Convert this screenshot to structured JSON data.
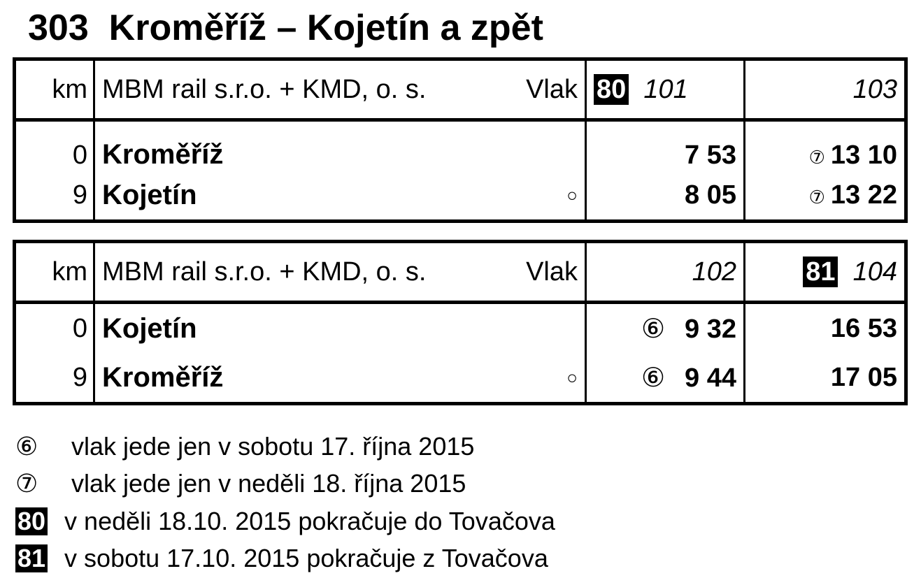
{
  "title": "303  Kroměříž – Kojetín a zpět",
  "tables": [
    {
      "header": {
        "km": "km",
        "operator": "MBM rail s.r.o. + KMD, o. s.",
        "train_label": "Vlak",
        "trains": [
          {
            "badge": "80",
            "number": "101"
          },
          {
            "badge": "",
            "number": "103"
          }
        ]
      },
      "rows": [
        {
          "km": "0",
          "station": "Kroměříž",
          "mark": "",
          "times": [
            {
              "note": "",
              "time": "7 53"
            },
            {
              "note": "⑦",
              "time": "13 10"
            }
          ]
        },
        {
          "km": "9",
          "station": "Kojetín",
          "mark": "○",
          "times": [
            {
              "note": "",
              "time": "8 05"
            },
            {
              "note": "⑦",
              "time": "13 22"
            }
          ]
        }
      ]
    },
    {
      "header": {
        "km": "km",
        "operator": "MBM rail s.r.o. + KMD, o. s.",
        "train_label": "Vlak",
        "trains": [
          {
            "badge": "",
            "number": "102"
          },
          {
            "badge": "81",
            "number": "104"
          }
        ]
      },
      "rows": [
        {
          "km": "0",
          "station": "Kojetín",
          "mark": "",
          "times": [
            {
              "note": "⑥",
              "time": "9 32"
            },
            {
              "note": "",
              "time": "16 53"
            }
          ]
        },
        {
          "km": "9",
          "station": "Kroměříž",
          "mark": "○",
          "times": [
            {
              "note": "⑥",
              "time": "9 44"
            },
            {
              "note": "",
              "time": "17 05"
            }
          ]
        }
      ]
    }
  ],
  "legend": [
    {
      "symbol": "⑥",
      "text": "vlak jede jen v sobotu 17. října 2015"
    },
    {
      "symbol": "⑦",
      "text": "vlak jede jen v neděli 18. října 2015"
    },
    {
      "symbol": "80",
      "text": "v neděli 18.10. 2015 pokračuje do Tovačova"
    },
    {
      "symbol": "81",
      "text": "v sobotu 17.10. 2015 pokračuje z Tovačova"
    }
  ]
}
